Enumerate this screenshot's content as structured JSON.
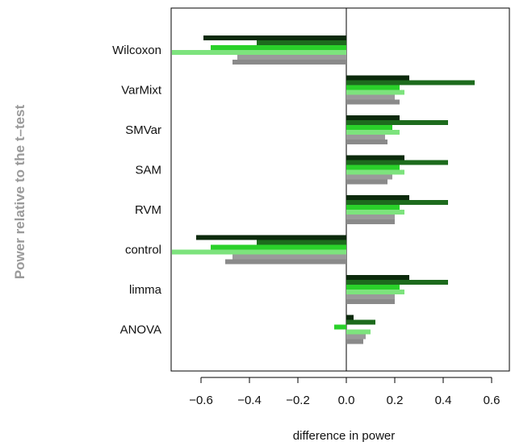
{
  "chart_data": {
    "type": "bar",
    "orientation": "horizontal",
    "xlabel": "difference in power",
    "ylabel": "Power relative to the t–test",
    "xlim": [
      -0.7,
      0.67
    ],
    "xticks": [
      -0.6,
      -0.4,
      -0.2,
      0.0,
      0.2,
      0.4,
      0.6
    ],
    "xtick_labels": [
      "−0.6",
      "−0.4",
      "−0.2",
      "0.0",
      "0.2",
      "0.4",
      "0.6"
    ],
    "grid": false,
    "categories": [
      "Wilcoxon",
      "VarMixt",
      "SMVar",
      "SAM",
      "RVM",
      "control",
      "limma",
      "ANOVA"
    ],
    "series": [
      {
        "color": "#0c2a0c",
        "values": [
          -0.59,
          0.26,
          0.22,
          0.24,
          0.26,
          -0.62,
          0.26,
          0.03
        ]
      },
      {
        "color": "#1d6b1d",
        "values": [
          -0.37,
          0.53,
          0.42,
          0.42,
          0.42,
          -0.37,
          0.42,
          0.12
        ]
      },
      {
        "color": "#2ad12a",
        "values": [
          -0.56,
          0.22,
          0.19,
          0.22,
          0.22,
          -0.56,
          0.22,
          -0.05
        ]
      },
      {
        "color": "#7de37d",
        "values": [
          -0.72,
          0.24,
          0.22,
          0.24,
          0.24,
          -0.72,
          0.24,
          0.1
        ]
      },
      {
        "color": "#9a9a9a",
        "values": [
          -0.45,
          0.2,
          0.16,
          0.19,
          0.2,
          -0.47,
          0.2,
          0.08
        ]
      },
      {
        "color": "#8a8a8a",
        "values": [
          -0.47,
          0.22,
          0.17,
          0.17,
          0.2,
          -0.5,
          0.2,
          0.07
        ]
      }
    ],
    "colors": {
      "axis": "#000000",
      "ylabel": "#9a9a9a"
    }
  }
}
